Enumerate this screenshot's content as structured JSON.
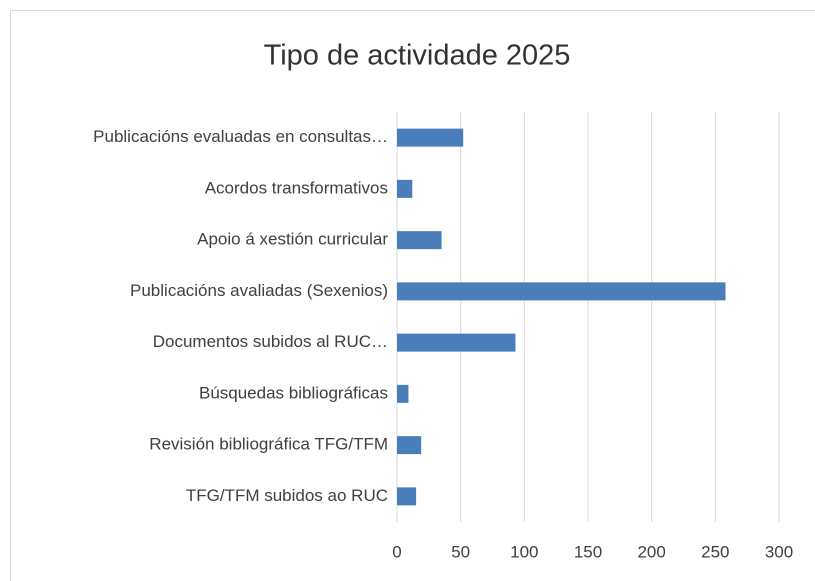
{
  "chart_data": {
    "type": "bar",
    "orientation": "horizontal",
    "title": "Tipo de actividade 2025",
    "categories": [
      "Publicacións evaluadas en consultas…",
      "Acordos transformativos",
      "Apoio á xestión curricular",
      "Publicacións avaliadas (Sexenios)",
      "Documentos subidos al RUC…",
      "Búsquedas bibliográficas",
      "Revisión bibliográfica TFG/TFM",
      "TFG/TFM subidos ao RUC"
    ],
    "values": [
      52,
      12,
      35,
      258,
      93,
      9,
      19,
      15
    ],
    "color": "#4a7ebb",
    "xlim": [
      0,
      300
    ],
    "xticks": [
      0,
      50,
      100,
      150,
      200,
      250,
      300
    ],
    "grid": true
  }
}
